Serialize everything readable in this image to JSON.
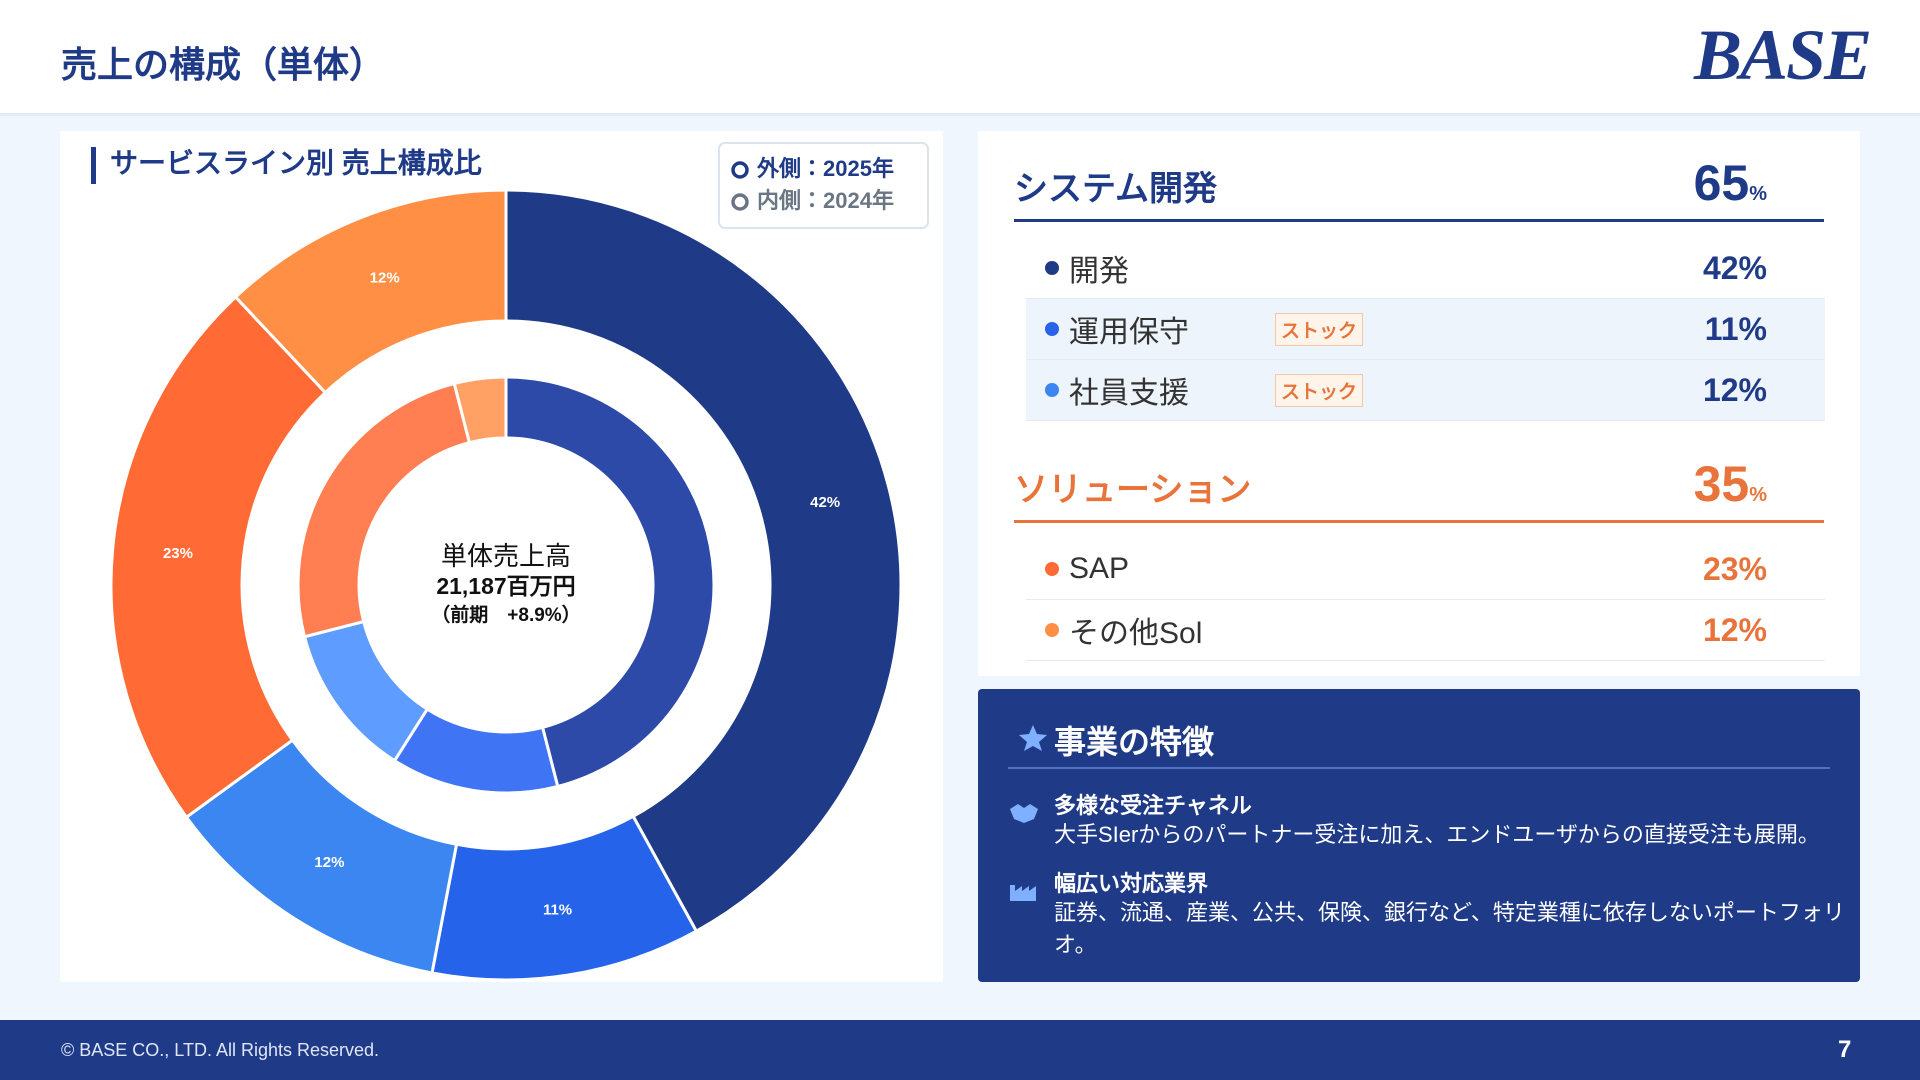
{
  "header": {
    "title": "売上の構成（単体）",
    "logo": "BASE"
  },
  "chart_data": {
    "type": "donut",
    "title": "サービスライン別 売上構成比",
    "series": [
      {
        "name": "外側：2025年",
        "values": [
          42,
          11,
          12,
          23,
          12
        ],
        "value_labels": [
          "42%",
          "11%",
          "12%",
          "23%",
          "12%"
        ],
        "colors": [
          "#1f3a87",
          "#2563eb",
          "#3b86f0",
          "#ff6a35",
          "#ff8f45"
        ]
      },
      {
        "name": "内側：2024年",
        "values": [
          46,
          13,
          12,
          25,
          4
        ],
        "colors": [
          "#2d4aa8",
          "#3f75f5",
          "#5e9cff",
          "#ff7f52",
          "#ffa064"
        ]
      }
    ],
    "center_text": [
      "単体売上高",
      "21,187百万円",
      "（前期　+8.9%）"
    ]
  },
  "breakdown": [
    {
      "name": "システム開発",
      "value": "65",
      "unit": "%",
      "items": [
        {
          "name": "開発",
          "value": "42%"
        },
        {
          "name": "運用保守",
          "tag": "ストック",
          "value": "11%"
        },
        {
          "name": "社員支援",
          "tag": "ストック",
          "value": "12%"
        }
      ]
    },
    {
      "name": "ソリューション",
      "value": "35",
      "unit": "%",
      "items": [
        {
          "name": "SAP",
          "value": "23%"
        },
        {
          "name": "その他Sol",
          "value": "12%"
        }
      ]
    }
  ],
  "features": {
    "title": "事業の特徴",
    "items": [
      {
        "title": "多様な受注チャネル",
        "text": "大手SIerからのパートナー受注に加え、エンドユーザからの直接受注も展開。"
      },
      {
        "title": "幅広い対応業界",
        "text": "証券、流通、産業、公共、保険、銀行など、特定業種に依存しないポートフォリオ。"
      }
    ]
  },
  "footer": {
    "copyright": "© BASE CO., LTD. All Rights Reserved.",
    "page": "7"
  }
}
